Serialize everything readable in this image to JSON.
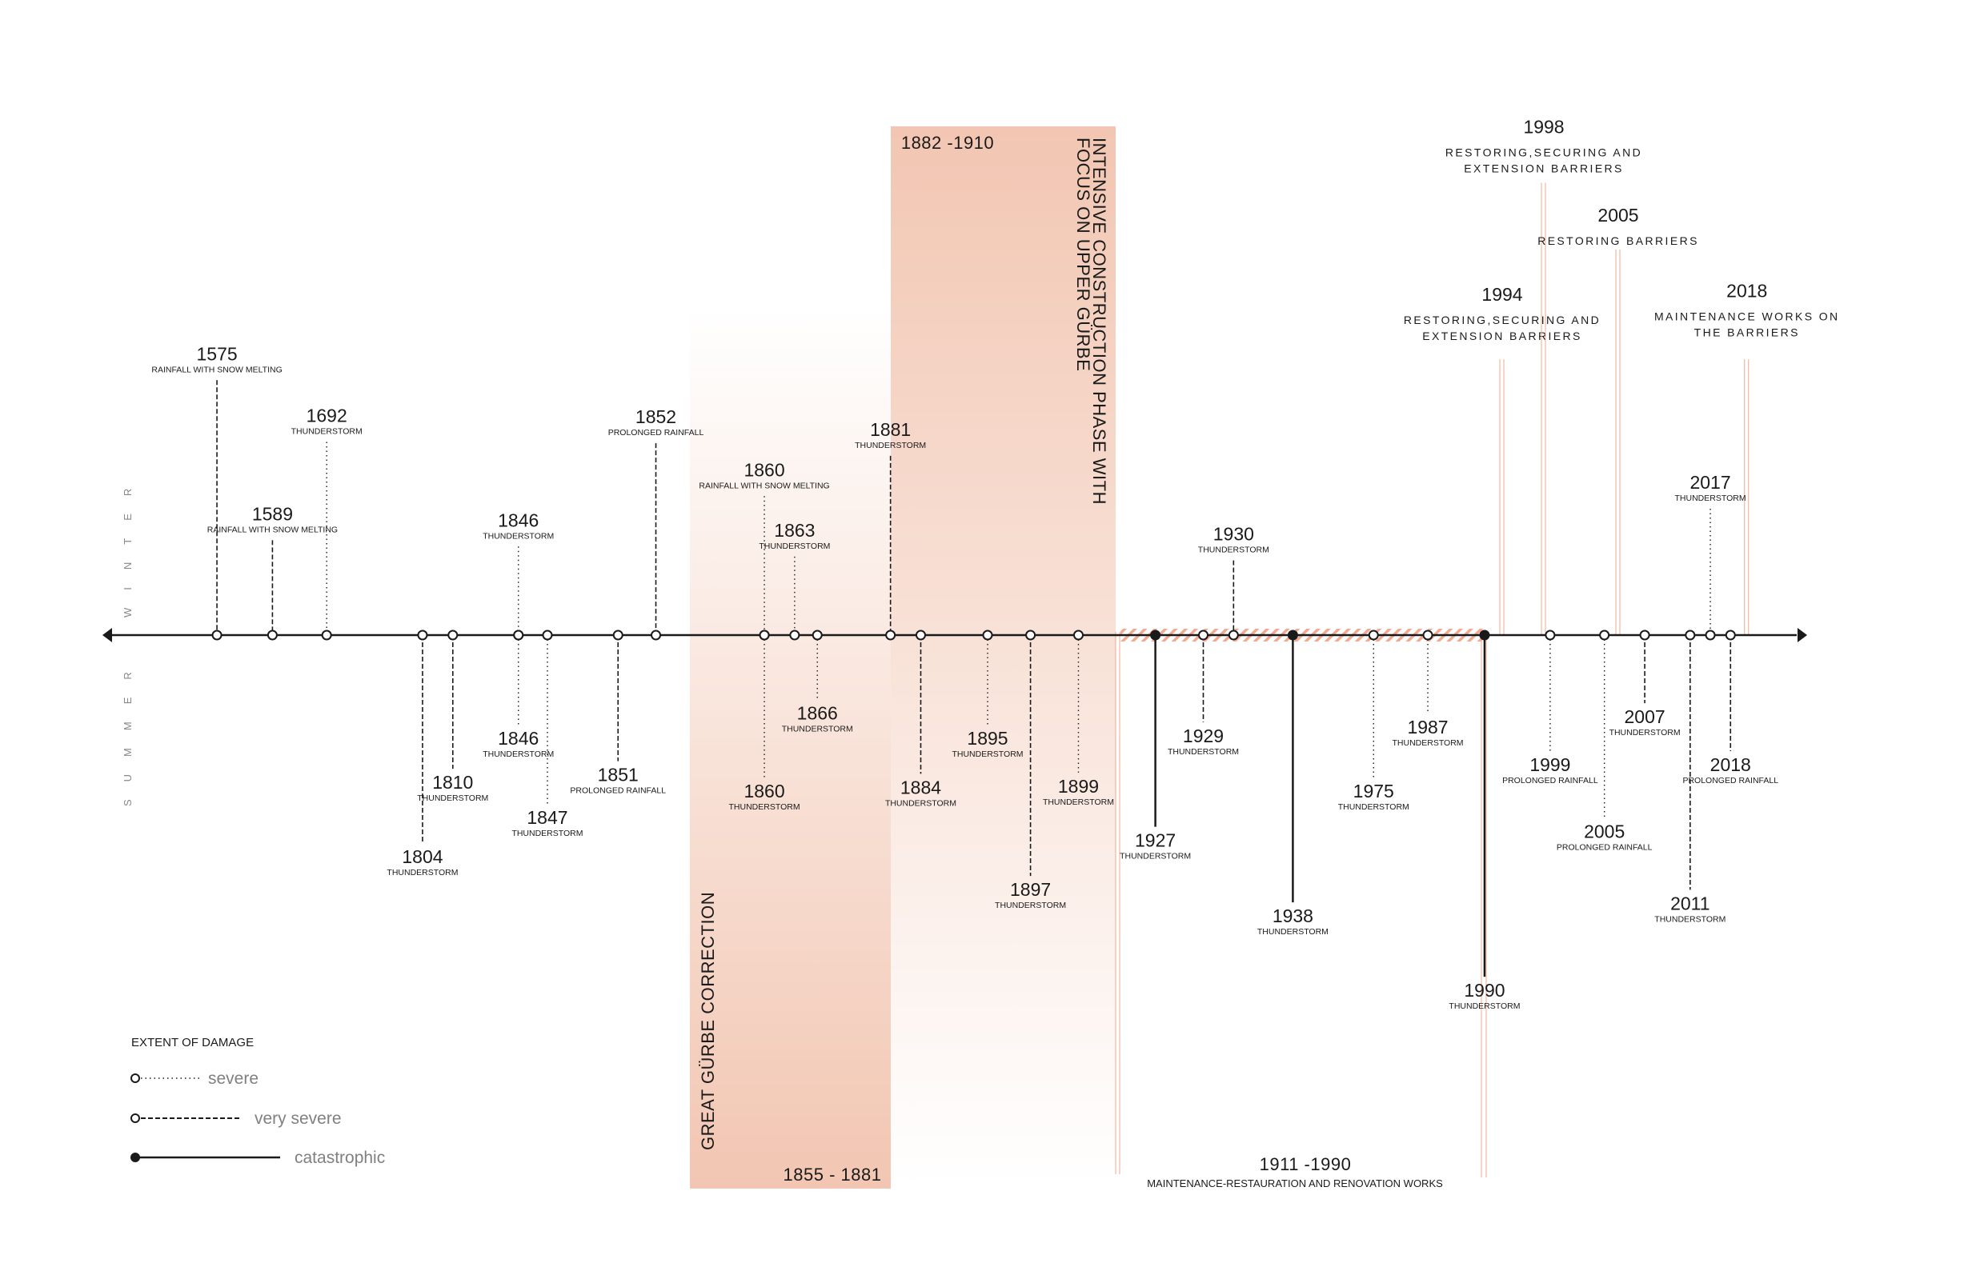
{
  "colors": {
    "accent": "#f2c6b2",
    "accent_line": "#f0a98c",
    "hatch": "#f3a98f",
    "ink": "#1a1a1a",
    "legend_text": "#808080"
  },
  "season_labels": {
    "winter": "WINTER",
    "summer": "SUMMER"
  },
  "periods": {
    "correction": {
      "title": "GREAT GÜRBE CORRECTION",
      "range": "1855 - 1881"
    },
    "intensive": {
      "title_lines": [
        "INTENSIVE CONSTRUCTION PHASE WITH",
        "FOCUS ON UPPER GÜRBE"
      ],
      "range": "1882 -1910"
    },
    "maintenance": {
      "range": "1911 -1990",
      "title": "MAINTENANCE-RESTAURATION AND RENOVATION WORKS"
    }
  },
  "barrier_works": [
    {
      "year": "1994",
      "lines": [
        "RESTORING,SECURING AND",
        "EXTENSION BARRIERS"
      ]
    },
    {
      "year": "1998",
      "lines": [
        "RESTORING,SECURING AND",
        "EXTENSION BARRIERS"
      ]
    },
    {
      "year": "2005",
      "lines": [
        "RESTORING BARRIERS"
      ]
    },
    {
      "year": "2018",
      "lines": [
        "MAINTENANCE WORKS ON",
        "THE BARRIERS"
      ]
    }
  ],
  "events": [
    {
      "year": "1575",
      "cause": "RAINFALL WITH SNOW MELTING",
      "damage": "very severe",
      "season": "winter"
    },
    {
      "year": "1589",
      "cause": "RAINFALL WITH SNOW MELTING",
      "damage": "very severe",
      "season": "winter"
    },
    {
      "year": "1692",
      "cause": "THUNDERSTORM",
      "damage": "severe",
      "season": "winter"
    },
    {
      "year": "1804",
      "cause": "THUNDERSTORM",
      "damage": "very severe",
      "season": "summer"
    },
    {
      "year": "1810",
      "cause": "THUNDERSTORM",
      "damage": "very severe",
      "season": "summer"
    },
    {
      "year": "1846",
      "cause": "THUNDERSTORM",
      "damage": "severe",
      "season": "winter"
    },
    {
      "year": "1846",
      "cause": "THUNDERSTORM",
      "damage": "severe",
      "season": "summer"
    },
    {
      "year": "1847",
      "cause": "THUNDERSTORM",
      "damage": "severe",
      "season": "summer"
    },
    {
      "year": "1851",
      "cause": "PROLONGED RAINFALL",
      "damage": "very severe",
      "season": "summer"
    },
    {
      "year": "1852",
      "cause": "PROLONGED RAINFALL",
      "damage": "very severe",
      "season": "winter"
    },
    {
      "year": "1860",
      "cause": "RAINFALL WITH SNOW MELTING",
      "damage": "severe",
      "season": "winter"
    },
    {
      "year": "1860",
      "cause": "THUNDERSTORM",
      "damage": "severe",
      "season": "summer"
    },
    {
      "year": "1863",
      "cause": "THUNDERSTORM",
      "damage": "severe",
      "season": "winter"
    },
    {
      "year": "1866",
      "cause": "THUNDERSTORM",
      "damage": "severe",
      "season": "summer"
    },
    {
      "year": "1881",
      "cause": "THUNDERSTORM",
      "damage": "very severe",
      "season": "winter"
    },
    {
      "year": "1884",
      "cause": "THUNDERSTORM",
      "damage": "very severe",
      "season": "summer"
    },
    {
      "year": "1895",
      "cause": "THUNDERSTORM",
      "damage": "severe",
      "season": "summer"
    },
    {
      "year": "1897",
      "cause": "THUNDERSTORM",
      "damage": "very severe",
      "season": "summer"
    },
    {
      "year": "1899",
      "cause": "THUNDERSTORM",
      "damage": "severe",
      "season": "summer"
    },
    {
      "year": "1927",
      "cause": "THUNDERSTORM",
      "damage": "catastrophic",
      "season": "summer"
    },
    {
      "year": "1929",
      "cause": "THUNDERSTORM",
      "damage": "very severe",
      "season": "summer"
    },
    {
      "year": "1930",
      "cause": "THUNDERSTORM",
      "damage": "very severe",
      "season": "winter"
    },
    {
      "year": "1938",
      "cause": "THUNDERSTORM",
      "damage": "catastrophic",
      "season": "summer"
    },
    {
      "year": "1975",
      "cause": "THUNDERSTORM",
      "damage": "severe",
      "season": "summer"
    },
    {
      "year": "1987",
      "cause": "THUNDERSTORM",
      "damage": "severe",
      "season": "summer"
    },
    {
      "year": "1990",
      "cause": "THUNDERSTORM",
      "damage": "catastrophic",
      "season": "summer"
    },
    {
      "year": "1999",
      "cause": "PROLONGED RAINFALL",
      "damage": "severe",
      "season": "summer"
    },
    {
      "year": "2005",
      "cause": "PROLONGED RAINFALL",
      "damage": "severe",
      "season": "summer"
    },
    {
      "year": "2007",
      "cause": "THUNDERSTORM",
      "damage": "very severe",
      "season": "summer"
    },
    {
      "year": "2011",
      "cause": "THUNDERSTORM",
      "damage": "very severe",
      "season": "summer"
    },
    {
      "year": "2017",
      "cause": "THUNDERSTORM",
      "damage": "severe",
      "season": "winter"
    },
    {
      "year": "2018",
      "cause": "PROLONGED RAINFALL",
      "damage": "very severe",
      "season": "summer"
    }
  ],
  "legend": {
    "title": "EXTENT OF DAMAGE",
    "items": [
      {
        "label": "severe",
        "style": "dotted"
      },
      {
        "label": "very severe",
        "style": "dashed"
      },
      {
        "label": "catastrophic",
        "style": "solid"
      }
    ]
  }
}
